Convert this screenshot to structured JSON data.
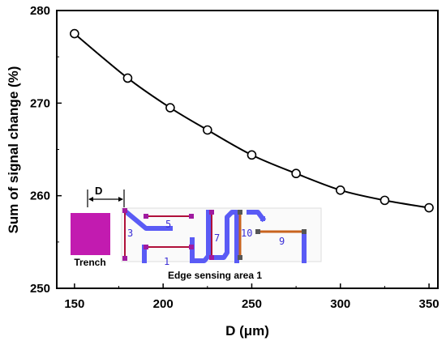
{
  "chart_data": {
    "type": "line",
    "x": [
      150,
      180,
      204,
      225,
      250,
      275,
      300,
      325,
      350
    ],
    "series": [
      {
        "values": [
          277.5,
          272.7,
          269.5,
          267.1,
          264.4,
          262.4,
          260.6,
          259.5,
          258.7
        ]
      }
    ],
    "xlabel": "D (μm)",
    "ylabel": "Sum of signal change (%)",
    "xlim": [
      140,
      355
    ],
    "ylim": [
      250,
      280
    ],
    "xticks": [
      150,
      200,
      250,
      300,
      350
    ],
    "yticks": [
      250,
      260,
      270,
      280
    ],
    "grid": false,
    "marker": "open-circle",
    "line_color": "#000000"
  },
  "inset": {
    "trench_label": "Trench",
    "d_label": "D",
    "caption": "Edge sensing area 1",
    "numbers": [
      "3",
      "5",
      "1",
      "7",
      "10",
      "9"
    ],
    "colors": {
      "trench": "#c21bb0",
      "trace_blue": "#5a5bf5",
      "trace_red": "#b0103a",
      "trace_orange": "#c8631e",
      "pad_purple": "#a01aa0"
    }
  }
}
